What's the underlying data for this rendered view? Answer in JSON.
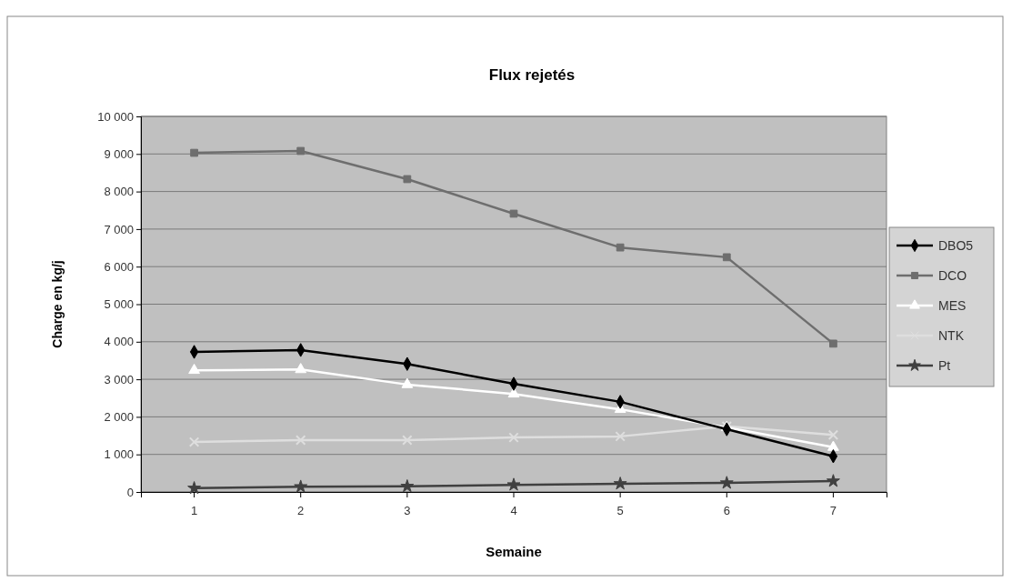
{
  "chart_data": {
    "type": "line",
    "title": "Flux rejetés",
    "xlabel": "Semaine",
    "ylabel": "Charge en kg/j",
    "categories": [
      "1",
      "2",
      "3",
      "4",
      "5",
      "6",
      "7"
    ],
    "ylim": [
      0,
      10000
    ],
    "yticks": [
      {
        "value": 0,
        "label": "0"
      },
      {
        "value": 1000,
        "label": "1 000"
      },
      {
        "value": 2000,
        "label": "2 000"
      },
      {
        "value": 3000,
        "label": "3 000"
      },
      {
        "value": 4000,
        "label": "4 000"
      },
      {
        "value": 5000,
        "label": "5 000"
      },
      {
        "value": 6000,
        "label": "6 000"
      },
      {
        "value": 7000,
        "label": "7 000"
      },
      {
        "value": 8000,
        "label": "8 000"
      },
      {
        "value": 9000,
        "label": "9 000"
      },
      {
        "value": 10000,
        "label": "10 000"
      }
    ],
    "grid": "y",
    "legend": "right",
    "series": [
      {
        "name": "DBO5",
        "color": "#000000",
        "marker": "diamond",
        "values": [
          3730,
          3780,
          3410,
          2880,
          2400,
          1670,
          950
        ]
      },
      {
        "name": "DCO",
        "color": "#6e6e6e",
        "marker": "square",
        "values": [
          9030,
          9080,
          8330,
          7410,
          6510,
          6250,
          3950
        ]
      },
      {
        "name": "MES",
        "color": "#ffffff",
        "marker": "triangle",
        "values": [
          3240,
          3260,
          2860,
          2610,
          2200,
          1720,
          1190
        ]
      },
      {
        "name": "NTK",
        "color": "#dedede",
        "marker": "cross",
        "values": [
          1330,
          1380,
          1380,
          1450,
          1480,
          1750,
          1520
        ]
      },
      {
        "name": "Pt",
        "color": "#404040",
        "marker": "star",
        "values": [
          100,
          140,
          150,
          190,
          220,
          240,
          290
        ]
      }
    ]
  }
}
